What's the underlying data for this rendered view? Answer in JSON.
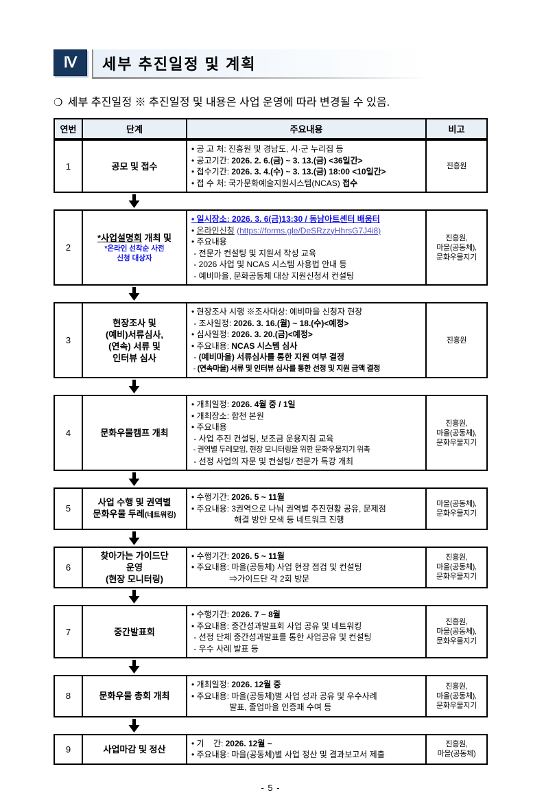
{
  "header": {
    "section_number": "Ⅳ",
    "title": "세부 추진일정 및 계획"
  },
  "subtitle": {
    "marker": "❍",
    "text": "세부 추진일정 ※ 추진일정 및 내용은 사업 운영에 따라 변경될 수 있음."
  },
  "colors": {
    "navy_badge": "#17365d",
    "table_header_bg": "#e8eff7",
    "emphasis_blue": "#1414e6",
    "link_purple": "#544fc9",
    "border_black": "#000000"
  },
  "footer": {
    "page_number": "- 5 -"
  },
  "table": {
    "headers": [
      "연번",
      "단계",
      "주요내용",
      "비고"
    ],
    "rows": [
      {
        "no": "1",
        "stage": [
          {
            "segs": [
              {
                "t": "공모 및 접수"
              }
            ]
          }
        ],
        "content": [
          {
            "segs": [
              {
                "t": "• 공 고 처: 진흥원 및 경남도, 시·군 누리집 등"
              }
            ]
          },
          {
            "segs": [
              {
                "t": "• 공고기간: "
              },
              {
                "t": "2026. 2. 6.(금) ~ 3. 13.(금) <36일간>",
                "b": true
              }
            ]
          },
          {
            "segs": [
              {
                "t": "• 접수기간: "
              },
              {
                "t": "2026. 3. 4.(수) ~ 3. 13.(금) 18:00 <10일간>",
                "b": true
              }
            ]
          },
          {
            "segs": [
              {
                "t": "• 접 수 처: 국가문화예술지원시스템(NCAS) "
              },
              {
                "t": "접수",
                "b": true
              }
            ]
          }
        ],
        "remark": [
          "진흥원"
        ]
      },
      {
        "no": "2",
        "stage": [
          {
            "segs": [
              {
                "t": "*사업설명회",
                "u": true
              },
              {
                "t": " 개최 및"
              }
            ]
          },
          {
            "cls": "sub",
            "segs": [
              {
                "t": "*온라인 선착순 사전",
                "c": "blue"
              }
            ]
          },
          {
            "cls": "sub",
            "segs": [
              {
                "t": "신청 대상자",
                "c": "blue"
              }
            ]
          }
        ],
        "content": [
          {
            "segs": [
              {
                "t": "• 일시장소: 2026. 3. 6(금)13:30 / 동남아트센터 배움터",
                "b": true,
                "u": true,
                "c": "blue"
              }
            ]
          },
          {
            "segs": [
              {
                "t": "• "
              },
              {
                "t": "온라인신청",
                "u": true,
                "c": "dim"
              },
              {
                "t": " "
              },
              {
                "t": "(https://forms.gle/DeSRzzyHhrsG7J4i8)",
                "u": true,
                "c": "link",
                "name": "online-application-link",
                "link": true
              }
            ]
          },
          {
            "segs": [
              {
                "t": "• 주요내용"
              }
            ]
          },
          {
            "segs": [
              {
                "t": " - 전문가 컨설팅 및 지원서 작성 교육"
              }
            ]
          },
          {
            "segs": [
              {
                "t": " - 2026 사업 및 NCAS 시스템 사용법 안내 등"
              }
            ]
          },
          {
            "segs": [
              {
                "t": " - 예비마을, 문화공동체 대상 지원신청서 컨설팅"
              }
            ]
          }
        ],
        "remark": [
          "진흥원,",
          "마을(공동체),",
          "문화우물지기"
        ]
      },
      {
        "no": "3",
        "stage": [
          {
            "segs": [
              {
                "t": "현장조사 및"
              }
            ]
          },
          {
            "segs": [
              {
                "t": "(예비)서류심사,"
              }
            ]
          },
          {
            "segs": [
              {
                "t": "(연속) 서류 및"
              }
            ]
          },
          {
            "segs": [
              {
                "t": "인터뷰 심사"
              }
            ]
          }
        ],
        "content": [
          {
            "segs": [
              {
                "t": "• 현장조사 시행 ※조사대상: 예비마을 신청자 현장"
              }
            ]
          },
          {
            "segs": [
              {
                "t": " - 조사일정: "
              },
              {
                "t": "2026. 3. 16.(월) ~ 18.(수)<예정>",
                "b": true
              }
            ]
          },
          {
            "segs": [
              {
                "t": "• 심사일정: "
              },
              {
                "t": "2026. 3. 20.(금)<예정>",
                "b": true
              }
            ]
          },
          {
            "segs": [
              {
                "t": "• 주요내용: "
              },
              {
                "t": "NCAS 시스템 심사",
                "b": true
              }
            ]
          },
          {
            "segs": [
              {
                "t": " - "
              },
              {
                "t": "(예비마을) 서류심사를 통한 지원 여부 결정",
                "b": true
              }
            ]
          },
          {
            "cls": "tight",
            "segs": [
              {
                "t": " - "
              },
              {
                "t": "(연속마을) 서류 및 인터뷰 심사를 통한 선정 및 지원 금액 결정",
                "b": true
              }
            ]
          }
        ],
        "remark": [
          "진흥원"
        ]
      },
      {
        "no": "4",
        "stage": [
          {
            "segs": [
              {
                "t": "문화우물캠프 개최"
              }
            ]
          }
        ],
        "content": [
          {
            "segs": [
              {
                "t": "• 개최일정: "
              },
              {
                "t": "2026. 4월 중 / 1일",
                "b": true
              }
            ]
          },
          {
            "segs": [
              {
                "t": "• 개최장소: 합천 본원"
              }
            ]
          },
          {
            "segs": [
              {
                "t": "• 주요내용"
              }
            ]
          },
          {
            "segs": [
              {
                "t": " - 사업 추진 컨설팅, 보조금 운용지침 교육"
              }
            ]
          },
          {
            "cls": "tight",
            "segs": [
              {
                "t": " - 권역별 두레모임, 현장 모니터링을 위한 문화우물지기 위촉"
              }
            ]
          },
          {
            "segs": [
              {
                "t": " - 선정 사업의 자문 및 컨설팅/ 전문가 특강 개최"
              }
            ]
          }
        ],
        "remark": [
          "진흥원,",
          "마을(공동체),",
          "문화우물지기"
        ]
      },
      {
        "no": "5",
        "stage": [
          {
            "segs": [
              {
                "t": "사업 수행 및 권역별"
              }
            ]
          },
          {
            "segs": [
              {
                "t": "문화우물 두레"
              },
              {
                "t": "(네트워킹)",
                "sm": true
              }
            ]
          }
        ],
        "content": [
          {
            "segs": [
              {
                "t": "• 수행기간: "
              },
              {
                "t": "2026. 5 ~ 11월",
                "b": true
              }
            ]
          },
          {
            "segs": [
              {
                "t": "• 주요내용: 3권역으로 나눠 권역별 추진현황 공유, 문제점"
              }
            ]
          },
          {
            "pad": 5.2,
            "segs": [
              {
                "t": "해결 방안 모색 등 네트워크 진행"
              }
            ]
          }
        ],
        "remark": [
          "마을(공동체),",
          "문화우물지기"
        ]
      },
      {
        "no": "6",
        "stage": [
          {
            "segs": [
              {
                "t": "찾아가는 가이드단"
              }
            ]
          },
          {
            "segs": [
              {
                "t": "운영"
              }
            ]
          },
          {
            "segs": [
              {
                "t": "(현장 모니터링)"
              }
            ]
          }
        ],
        "content": [
          {
            "segs": [
              {
                "t": "• 수행기간: "
              },
              {
                "t": "2026. 5 ~ 11월",
                "b": true
              }
            ]
          },
          {
            "segs": [
              {
                "t": "• 주요내용: 마을(공동체) 사업 현장 점검 및 컨설팅"
              }
            ]
          },
          {
            "pad": 4.6,
            "segs": [
              {
                "t": "⇒가이드단 각 2회 방문"
              }
            ]
          }
        ],
        "remark": [
          "진흥원,",
          "마을(공동체),",
          "문화우물지기"
        ]
      },
      {
        "no": "7",
        "stage": [
          {
            "segs": [
              {
                "t": "중간발표회"
              }
            ]
          }
        ],
        "content": [
          {
            "segs": [
              {
                "t": "• 수행기간: "
              },
              {
                "t": "2026. 7 ~ 8월",
                "b": true
              }
            ]
          },
          {
            "segs": [
              {
                "t": "• 주요내용: 중간성과발표회 사업 공유 및 네트워킹"
              }
            ]
          },
          {
            "segs": [
              {
                "t": " - 선정 단체 중간성과발표를 통한 사업공유 및 컨설팅"
              }
            ]
          },
          {
            "segs": [
              {
                "t": " - 우수 사례 발표 등"
              }
            ]
          }
        ],
        "remark": [
          "진흥원,",
          "마을(공동체),",
          "문화우물지기"
        ]
      },
      {
        "no": "8",
        "stage": [
          {
            "segs": [
              {
                "t": "문화우물 총회 개최"
              }
            ]
          }
        ],
        "content": [
          {
            "segs": [
              {
                "t": "• 개최일정: "
              },
              {
                "t": "2026. 12월 중",
                "b": true
              }
            ]
          },
          {
            "segs": [
              {
                "t": "• 주요내용: 마을(공동체)별 사업 성과 공유 및 우수사례"
              }
            ]
          },
          {
            "pad": 4.6,
            "segs": [
              {
                "t": "발표, 졸업마을 인증패 수여 등"
              }
            ]
          }
        ],
        "remark": [
          "진흥원,",
          "마을(공동체),",
          "문화우물지기"
        ]
      },
      {
        "no": "9",
        "stage": [
          {
            "segs": [
              {
                "t": "사업마감 및 정산"
              }
            ]
          }
        ],
        "content": [
          {
            "segs": [
              {
                "t": "• 기    간: "
              },
              {
                "t": "2026. 12월 ~",
                "b": true
              }
            ]
          },
          {
            "segs": [
              {
                "t": "• 주요내용: 마을(공동체)별 사업 정산 및 결과보고서 제출"
              }
            ]
          }
        ],
        "remark": [
          "진흥원,",
          "마을(공동체)"
        ]
      }
    ]
  }
}
